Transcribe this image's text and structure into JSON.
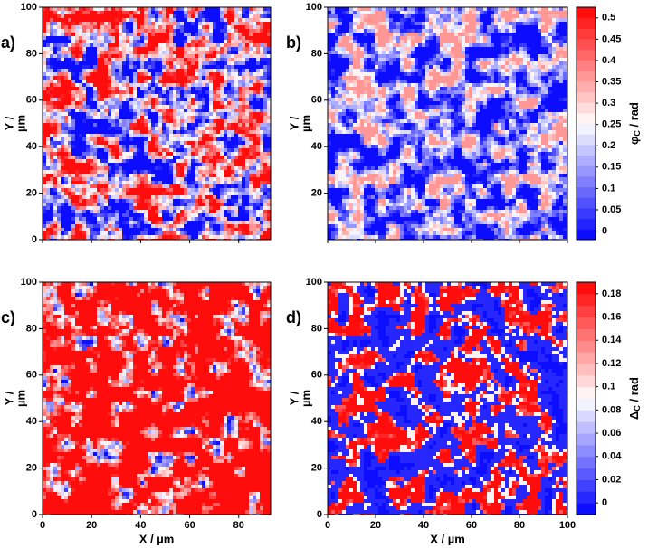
{
  "chart_data": [
    {
      "type": "heatmap",
      "panel_label": "a)",
      "xlim": [
        0,
        93
      ],
      "xticks": [
        0,
        20,
        40,
        60,
        80
      ],
      "show_xtick_labels": false,
      "ylim": [
        0,
        100
      ],
      "yticks": [
        0,
        20,
        40,
        60,
        80,
        100
      ],
      "ylabel_lines": [
        "Y /",
        "µm"
      ]
    },
    {
      "type": "heatmap",
      "panel_label": "b)",
      "xlim": [
        0,
        100
      ],
      "xticks": [
        0,
        20,
        40,
        60,
        80,
        100
      ],
      "show_xtick_labels": false,
      "ylim": [
        0,
        100
      ],
      "yticks": [
        20,
        40,
        60,
        80,
        100
      ],
      "ylabel_lines": [
        "Y /",
        "µm"
      ]
    },
    {
      "type": "heatmap",
      "panel_label": "c)",
      "xlim": [
        0,
        93
      ],
      "xticks": [
        0,
        20,
        40,
        60,
        80
      ],
      "show_xtick_labels": true,
      "xlabel": "X / µm",
      "ylim": [
        0,
        100
      ],
      "yticks": [
        0,
        20,
        40,
        60,
        80,
        100
      ],
      "ylabel_lines": [
        "Y /",
        "µm"
      ]
    },
    {
      "type": "heatmap",
      "panel_label": "d)",
      "xlim": [
        0,
        100
      ],
      "xticks": [
        0,
        20,
        40,
        60,
        80,
        100
      ],
      "show_xtick_labels": true,
      "xlabel": "X / µm",
      "ylim": [
        0,
        100
      ],
      "yticks": [
        0,
        20,
        40,
        60,
        80,
        100
      ],
      "ylabel_lines": [
        "Y /",
        "µm"
      ]
    },
    {
      "type": "colorbar",
      "clim": [
        -0.02,
        0.525
      ],
      "ticks": [
        0,
        0.05,
        0.1,
        0.15,
        0.2,
        0.25,
        0.3,
        0.35,
        0.4,
        0.45,
        0.5
      ],
      "label": {
        "symbol": "φ",
        "subscript": "C",
        "unit": " / rad"
      },
      "colormap": [
        "#0000ff",
        "#ffffff",
        "#ff0000"
      ],
      "levels": 22
    },
    {
      "type": "colorbar",
      "clim": [
        -0.01,
        0.19
      ],
      "ticks": [
        0,
        0.02,
        0.04,
        0.06,
        0.08,
        0.1,
        0.12,
        0.14,
        0.16,
        0.18
      ],
      "label": {
        "symbol": "Δ",
        "subscript": "C",
        "unit": " / rad"
      },
      "colormap": [
        "#0000ff",
        "#ffffff",
        "#ff0000"
      ],
      "levels": 20
    }
  ]
}
